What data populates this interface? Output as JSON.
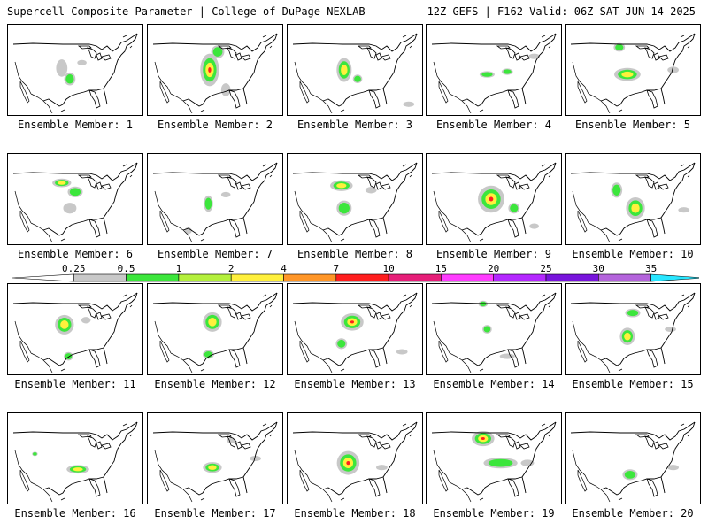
{
  "header": {
    "left": "Supercell Composite Parameter | College of DuPage NEXLAB",
    "right": "12Z GEFS | F162 Valid: 06Z SAT JUN 14 2025"
  },
  "panels": [
    {
      "label": "Ensemble Member: 1",
      "blobs": [
        [
          0.4,
          0.48,
          0.06,
          0.16,
          0
        ],
        [
          0.46,
          0.6,
          0.06,
          0.12,
          1
        ],
        [
          0.55,
          0.42,
          0.05,
          0.05,
          0
        ]
      ]
    },
    {
      "label": "Ensemble Member: 2",
      "blobs": [
        [
          0.46,
          0.5,
          0.1,
          0.3,
          3
        ],
        [
          0.52,
          0.3,
          0.07,
          0.12,
          1
        ],
        [
          0.58,
          0.72,
          0.05,
          0.12,
          0
        ]
      ]
    },
    {
      "label": "Ensemble Member: 3",
      "blobs": [
        [
          0.42,
          0.5,
          0.08,
          0.22,
          2
        ],
        [
          0.52,
          0.6,
          0.05,
          0.08,
          1
        ],
        [
          0.9,
          0.88,
          0.06,
          0.05,
          0
        ]
      ]
    },
    {
      "label": "Ensemble Member: 4",
      "blobs": [
        [
          0.45,
          0.55,
          0.08,
          0.06,
          1
        ],
        [
          0.6,
          0.52,
          0.06,
          0.06,
          1
        ],
        [
          0.8,
          0.35,
          0.06,
          0.05,
          0
        ]
      ]
    },
    {
      "label": "Ensemble Member: 5",
      "blobs": [
        [
          0.4,
          0.25,
          0.06,
          0.08,
          1
        ],
        [
          0.46,
          0.55,
          0.14,
          0.12,
          2
        ],
        [
          0.8,
          0.5,
          0.06,
          0.06,
          0
        ]
      ]
    },
    {
      "label": "Ensemble Member: 6",
      "blobs": [
        [
          0.4,
          0.32,
          0.1,
          0.08,
          2
        ],
        [
          0.5,
          0.42,
          0.08,
          0.1,
          1
        ],
        [
          0.46,
          0.6,
          0.07,
          0.1,
          0
        ]
      ]
    },
    {
      "label": "Ensemble Member: 7",
      "blobs": [
        [
          0.45,
          0.55,
          0.05,
          0.15,
          1
        ],
        [
          0.58,
          0.45,
          0.05,
          0.05,
          0
        ],
        [
          0.3,
          0.85,
          0.04,
          0.06,
          0
        ]
      ]
    },
    {
      "label": "Ensemble Member: 8",
      "blobs": [
        [
          0.4,
          0.35,
          0.12,
          0.1,
          2
        ],
        [
          0.42,
          0.6,
          0.08,
          0.14,
          1
        ],
        [
          0.62,
          0.4,
          0.06,
          0.06,
          0
        ]
      ]
    },
    {
      "label": "Ensemble Member: 9",
      "blobs": [
        [
          0.48,
          0.5,
          0.14,
          0.25,
          3
        ],
        [
          0.65,
          0.6,
          0.06,
          0.1,
          1
        ],
        [
          0.8,
          0.8,
          0.05,
          0.05,
          0
        ]
      ]
    },
    {
      "label": "Ensemble Member: 10",
      "blobs": [
        [
          0.38,
          0.4,
          0.06,
          0.14,
          1
        ],
        [
          0.52,
          0.6,
          0.1,
          0.2,
          2
        ],
        [
          0.88,
          0.62,
          0.06,
          0.05,
          0
        ]
      ]
    },
    {
      "label": "Ensemble Member: 11",
      "blobs": [
        [
          0.42,
          0.45,
          0.1,
          0.18,
          2
        ],
        [
          0.45,
          0.8,
          0.05,
          0.08,
          1
        ],
        [
          0.58,
          0.4,
          0.05,
          0.06,
          0
        ]
      ]
    },
    {
      "label": "Ensemble Member: 12",
      "blobs": [
        [
          0.48,
          0.42,
          0.1,
          0.18,
          2
        ],
        [
          0.45,
          0.78,
          0.06,
          0.08,
          1
        ]
      ]
    },
    {
      "label": "Ensemble Member: 13",
      "blobs": [
        [
          0.48,
          0.42,
          0.12,
          0.16,
          3
        ],
        [
          0.4,
          0.66,
          0.06,
          0.1,
          1
        ],
        [
          0.85,
          0.75,
          0.06,
          0.05,
          0
        ]
      ]
    },
    {
      "label": "Ensemble Member: 14",
      "blobs": [
        [
          0.42,
          0.22,
          0.05,
          0.06,
          1
        ],
        [
          0.45,
          0.5,
          0.05,
          0.08,
          1
        ],
        [
          0.6,
          0.8,
          0.08,
          0.05,
          0
        ]
      ]
    },
    {
      "label": "Ensemble Member: 15",
      "blobs": [
        [
          0.5,
          0.32,
          0.08,
          0.08,
          1
        ],
        [
          0.46,
          0.58,
          0.08,
          0.16,
          2
        ],
        [
          0.78,
          0.5,
          0.06,
          0.05,
          0
        ]
      ]
    },
    {
      "label": "Ensemble Member: 16",
      "blobs": [
        [
          0.52,
          0.62,
          0.12,
          0.08,
          2
        ],
        [
          0.2,
          0.45,
          0.03,
          0.04,
          1
        ]
      ]
    },
    {
      "label": "Ensemble Member: 17",
      "blobs": [
        [
          0.48,
          0.6,
          0.1,
          0.1,
          2
        ],
        [
          0.62,
          0.3,
          0.05,
          0.05,
          0
        ],
        [
          0.8,
          0.5,
          0.06,
          0.05,
          0
        ]
      ]
    },
    {
      "label": "Ensemble Member: 18",
      "blobs": [
        [
          0.45,
          0.55,
          0.12,
          0.22,
          3
        ],
        [
          0.7,
          0.6,
          0.06,
          0.05,
          0
        ]
      ]
    },
    {
      "label": "Ensemble Member: 19",
      "blobs": [
        [
          0.42,
          0.28,
          0.12,
          0.14,
          3
        ],
        [
          0.55,
          0.55,
          0.18,
          0.1,
          1
        ],
        [
          0.75,
          0.55,
          0.07,
          0.06,
          0
        ]
      ]
    },
    {
      "label": "Ensemble Member: 20",
      "blobs": [
        [
          0.48,
          0.68,
          0.08,
          0.1,
          1
        ],
        [
          0.8,
          0.6,
          0.06,
          0.05,
          0
        ]
      ]
    }
  ],
  "colorbar": {
    "ticks": [
      "0.25",
      "0.5",
      "1",
      "2",
      "4",
      "7",
      "10",
      "15",
      "20",
      "25",
      "30",
      "35"
    ],
    "colors": [
      "#ffffff",
      "#c8c8c8",
      "#3ce63c",
      "#b4f03c",
      "#fff03c",
      "#ff9628",
      "#ff1e1e",
      "#e61e78",
      "#ff3cff",
      "#b428ff",
      "#7814dc",
      "#b464dc",
      "#28e6ff"
    ]
  },
  "contour_colors": {
    "gray": "#c8c8c8",
    "green": "#3ce63c",
    "yellow": "#fff03c",
    "red": "#ff1e1e"
  }
}
